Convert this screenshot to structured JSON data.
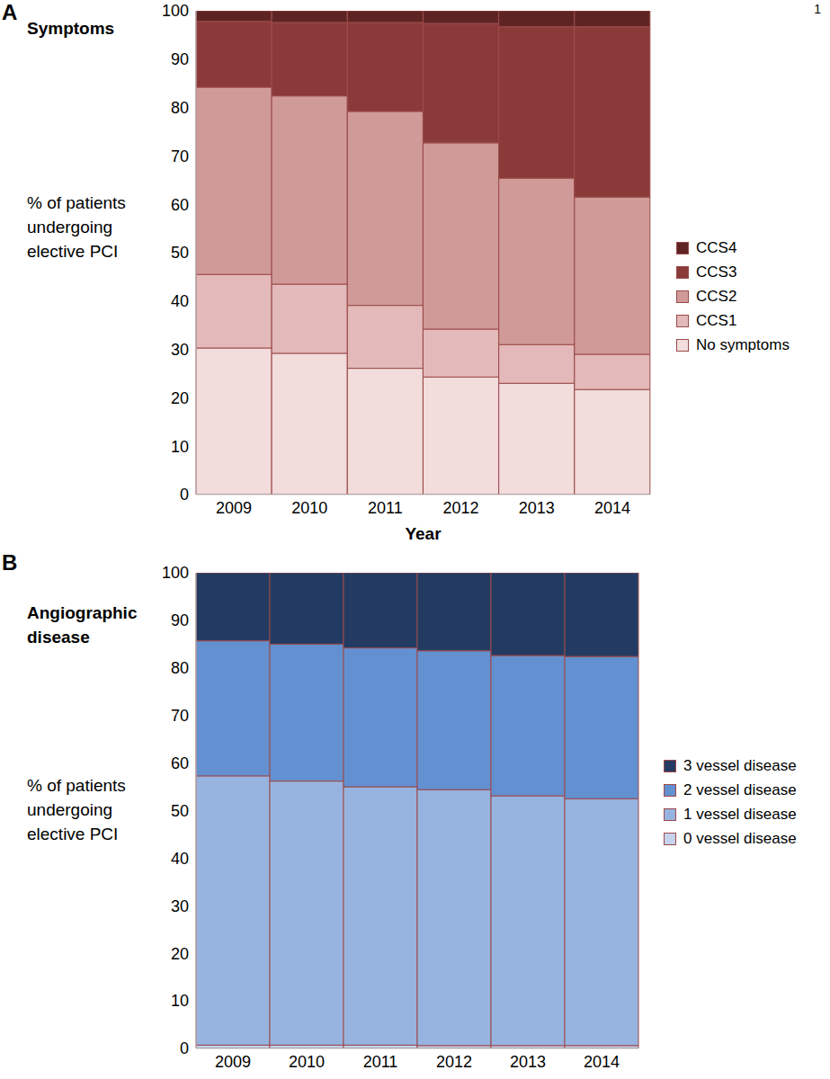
{
  "page_label": "1",
  "chart_data": [
    {
      "type": "bar",
      "panel": "A",
      "title": "Symptoms",
      "y_label": "% of patients undergoing elective PCI",
      "x_label": "Year",
      "stacked": true,
      "legend": "right",
      "categories": [
        "2009",
        "2010",
        "2011",
        "2012",
        "2013",
        "2014"
      ],
      "ylim": [
        0,
        100
      ],
      "yticks": [
        0,
        10,
        20,
        30,
        40,
        50,
        60,
        70,
        80,
        90,
        100
      ],
      "series": [
        {
          "name": "No symptoms",
          "color": "#f2dcdc",
          "values": [
            30.3,
            29.2,
            26.1,
            24.3,
            23.0,
            21.7
          ]
        },
        {
          "name": "CCS1",
          "color": "#e3b9b9",
          "values": [
            15.2,
            14.3,
            13.0,
            9.9,
            8.0,
            7.3
          ]
        },
        {
          "name": "CCS2",
          "color": "#d09a98",
          "values": [
            38.7,
            38.9,
            40.1,
            38.5,
            34.4,
            32.5
          ]
        },
        {
          "name": "CCS3",
          "color": "#8b3a3a",
          "values": [
            13.6,
            15.2,
            18.4,
            24.7,
            31.3,
            35.2
          ]
        },
        {
          "name": "CCS4",
          "color": "#5e2424",
          "values": [
            2.2,
            2.4,
            2.4,
            2.6,
            3.3,
            3.3
          ]
        }
      ]
    },
    {
      "type": "bar",
      "panel": "B",
      "title": "Angiographic disease",
      "y_label": "% of patients undergoing elective PCI",
      "stacked": true,
      "legend": "right",
      "categories": [
        "2009",
        "2010",
        "2011",
        "2012",
        "2013",
        "2014"
      ],
      "ylim": [
        0,
        100
      ],
      "yticks": [
        0,
        10,
        20,
        30,
        40,
        50,
        60,
        70,
        80,
        90,
        100
      ],
      "series": [
        {
          "name": "0 vessel disease",
          "color": "#c5d3ec",
          "values": [
            0.7,
            0.7,
            0.7,
            0.6,
            0.6,
            0.6
          ]
        },
        {
          "name": "1 vessel disease",
          "color": "#97b4e0",
          "values": [
            56.6,
            55.5,
            54.3,
            53.8,
            52.5,
            51.9
          ]
        },
        {
          "name": "2 vessel disease",
          "color": "#6390d0",
          "values": [
            28.4,
            28.8,
            29.2,
            29.2,
            29.5,
            29.9
          ]
        },
        {
          "name": "3 vessel disease",
          "color": "#233b63",
          "values": [
            14.3,
            15.0,
            15.8,
            16.4,
            17.4,
            17.6
          ]
        }
      ]
    }
  ]
}
